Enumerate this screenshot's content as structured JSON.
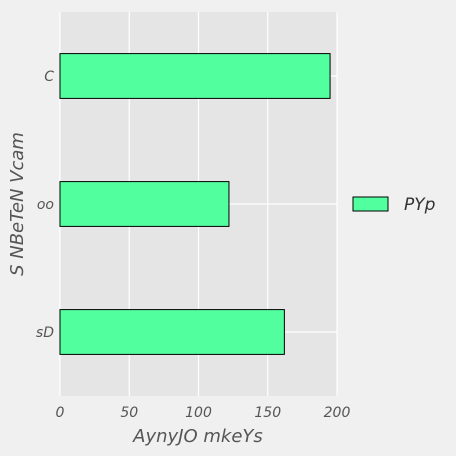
{
  "chart_data": {
    "type": "bar",
    "orientation": "horizontal",
    "categories": [
      "C",
      "oo",
      "sD"
    ],
    "series": [
      {
        "name": "PYp",
        "values": [
          195,
          122,
          162
        ]
      }
    ],
    "xlabel": "AynyJO mkeYs",
    "ylabel": "S NBeTeN Vcam",
    "xlim": [
      0,
      200
    ],
    "xticks": [
      "0",
      "50",
      "100",
      "150",
      "200"
    ],
    "grid": true,
    "legend_position": "right",
    "colors": {
      "bar_fill": "#52ff9f",
      "bar_stroke": "#000000",
      "plot_bg": "#e5e5e5",
      "figure_bg": "#f0f0f0",
      "grid": "#ffffff"
    }
  }
}
